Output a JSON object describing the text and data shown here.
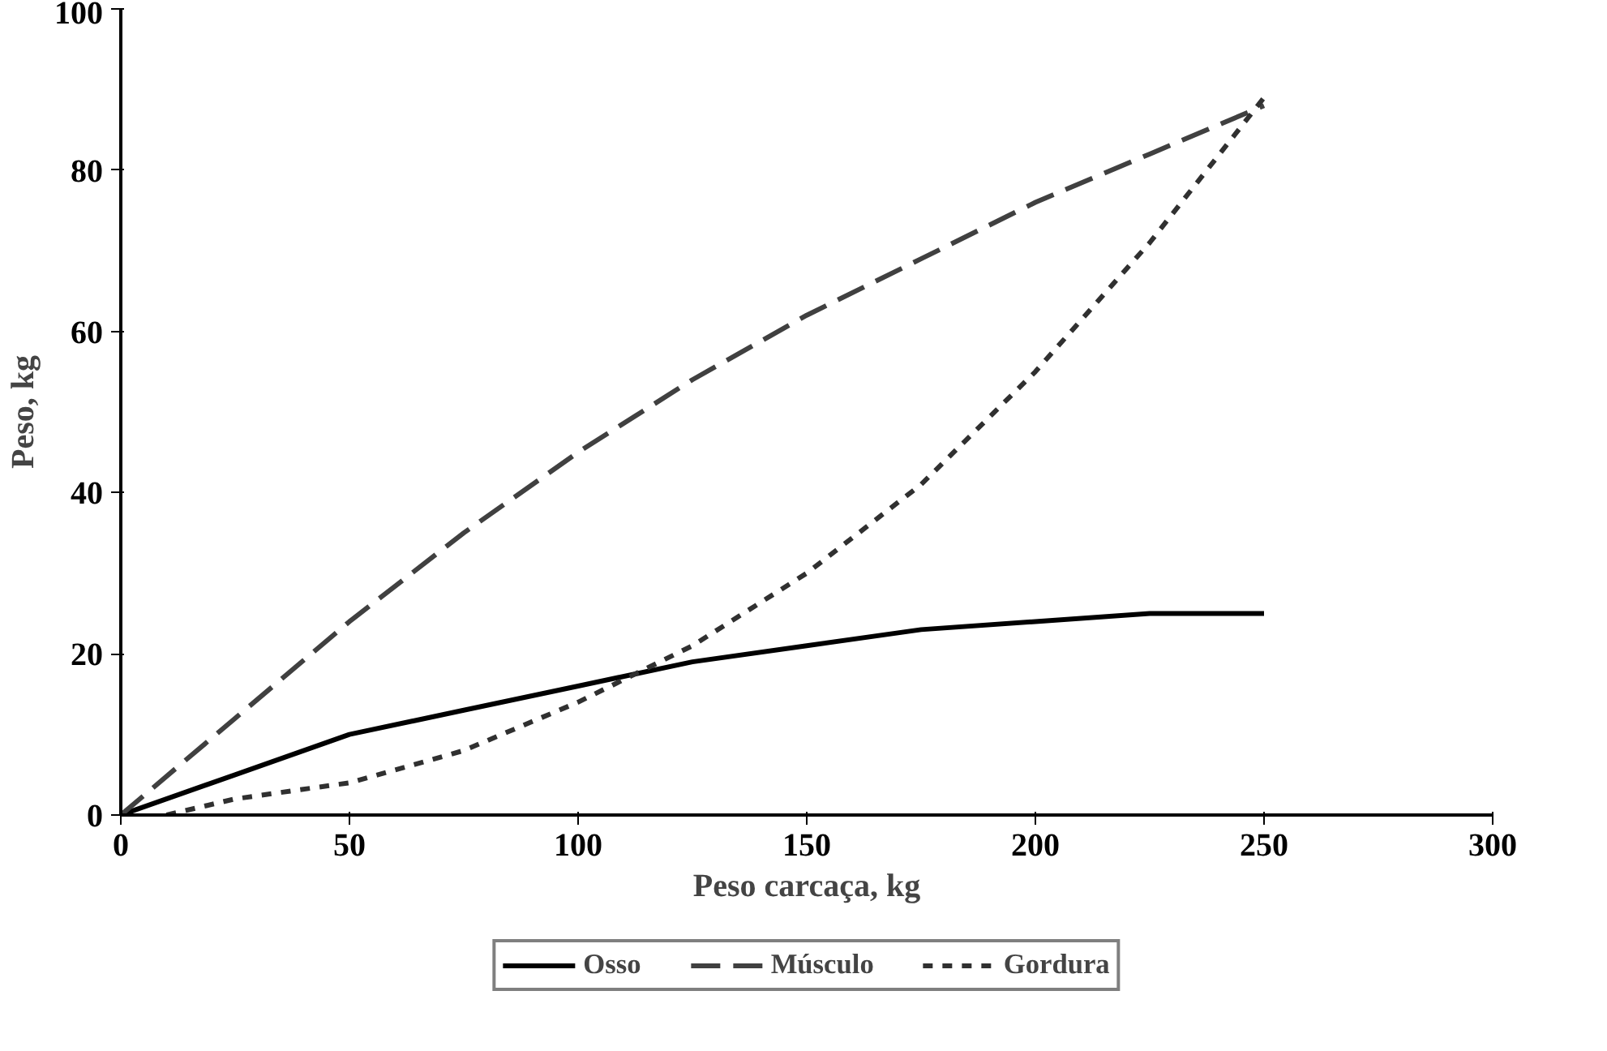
{
  "chart_data": {
    "type": "line",
    "xlabel": "Peso carcaça, kg",
    "ylabel": "Peso, kg",
    "xlim": [
      0,
      300
    ],
    "xticks": [
      0,
      50,
      100,
      150,
      200,
      250,
      300
    ],
    "ylim": [
      0,
      100
    ],
    "yticks": [
      0,
      20,
      40,
      60,
      80,
      100
    ],
    "grid": false,
    "legend": "bottom",
    "marker": "none",
    "series": [
      {
        "name": "Osso",
        "color": "#000000",
        "line_style": "solid",
        "x": [
          0,
          25,
          50,
          75,
          100,
          125,
          150,
          175,
          200,
          225,
          250
        ],
        "values": [
          0,
          5,
          10,
          13,
          16,
          19,
          21,
          23,
          24,
          25,
          25
        ]
      },
      {
        "name": "Músculo",
        "color": "#404040",
        "line_style": "dashed",
        "x": [
          0,
          25,
          50,
          75,
          100,
          125,
          150,
          175,
          200,
          225,
          250
        ],
        "values": [
          0,
          12,
          24,
          35,
          45,
          54,
          62,
          69,
          76,
          82,
          88
        ]
      },
      {
        "name": "Gordura",
        "color": "#303030",
        "line_style": "dotted",
        "x": [
          10,
          25,
          50,
          75,
          100,
          125,
          150,
          175,
          200,
          225,
          250
        ],
        "values": [
          0,
          2,
          4,
          8,
          14,
          21,
          30,
          41,
          55,
          71,
          89
        ]
      }
    ]
  }
}
